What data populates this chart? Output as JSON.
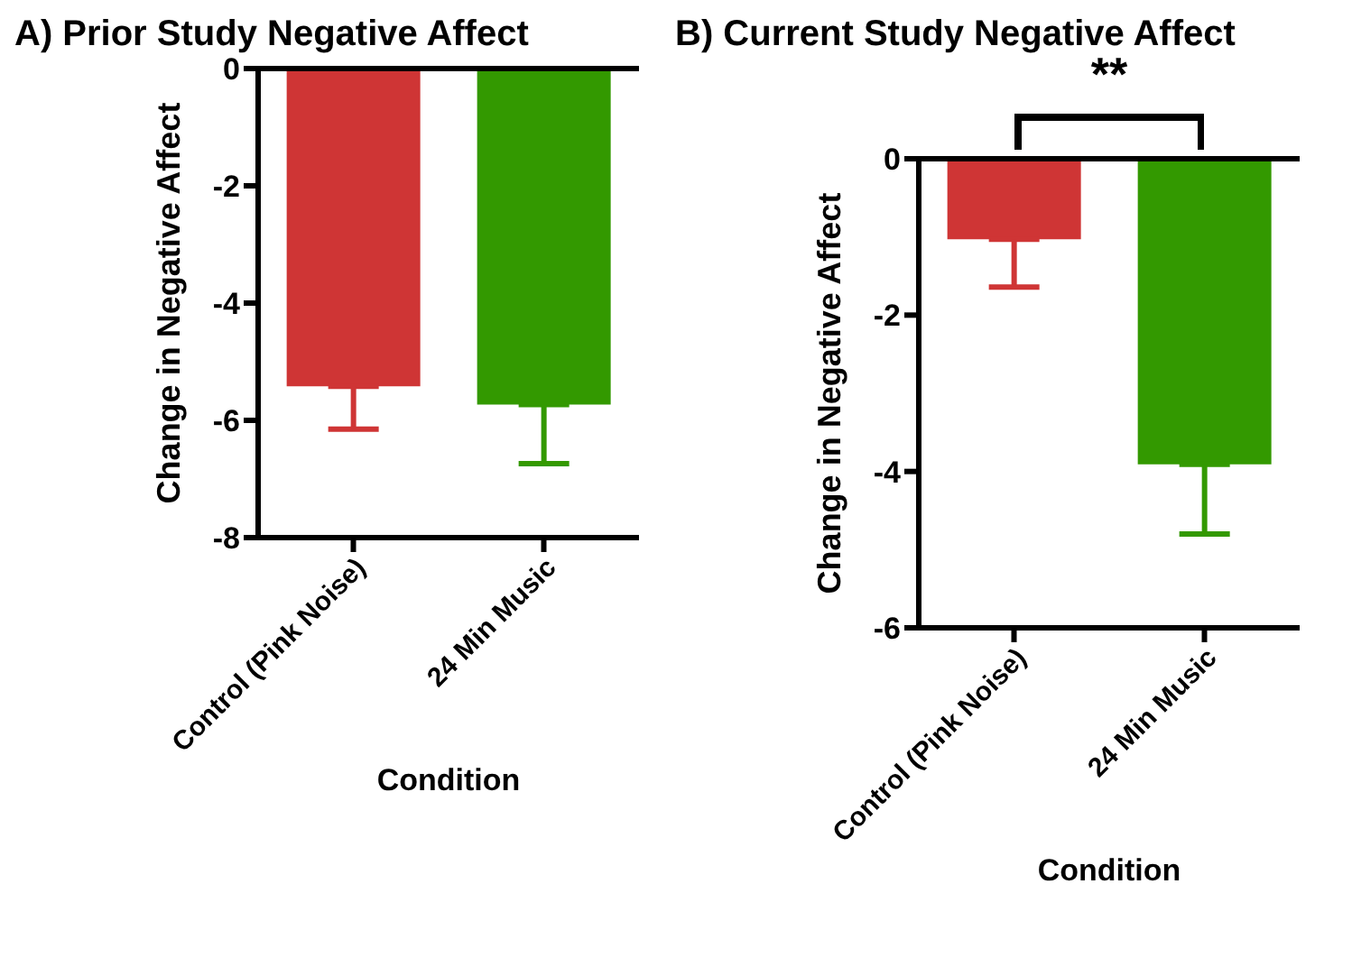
{
  "chart_data": [
    {
      "type": "bar",
      "title": "A) Prior Study Negative Affect",
      "xlabel": "Condition",
      "ylabel": "Change in Negative Affect",
      "categories": [
        "Control (Pink Noise)",
        "24 Min Music"
      ],
      "values": [
        -5.42,
        -5.73
      ],
      "colors": [
        "#cf3535",
        "#339900"
      ],
      "errors": [
        [
          -6.15,
          -5.42
        ],
        [
          -6.74,
          -5.73
        ]
      ],
      "ylim": [
        -8,
        0
      ],
      "yticks": [
        -8,
        -6,
        -4,
        -2,
        0
      ],
      "grid": false,
      "ref_lines": [
        {
          "axis": "y",
          "value": 0,
          "color": "#000000"
        }
      ]
    },
    {
      "type": "bar",
      "title": "B) Current Study Negative Affect",
      "xlabel": "Condition",
      "ylabel": "Change in Negative Affect",
      "categories": [
        "Control (Pink Noise)",
        "24 Min Music"
      ],
      "values": [
        -1.03,
        -3.91
      ],
      "colors": [
        "#cf3535",
        "#339900"
      ],
      "errors": [
        [
          -1.64,
          -1.03
        ],
        [
          -4.8,
          -3.91
        ]
      ],
      "ylim": [
        -6,
        0
      ],
      "yticks": [
        -6,
        -4,
        -2,
        0
      ],
      "grid": false,
      "ref_lines": [
        {
          "axis": "y",
          "value": 0,
          "color": "#000000"
        }
      ],
      "annotations": [
        "**"
      ]
    }
  ]
}
